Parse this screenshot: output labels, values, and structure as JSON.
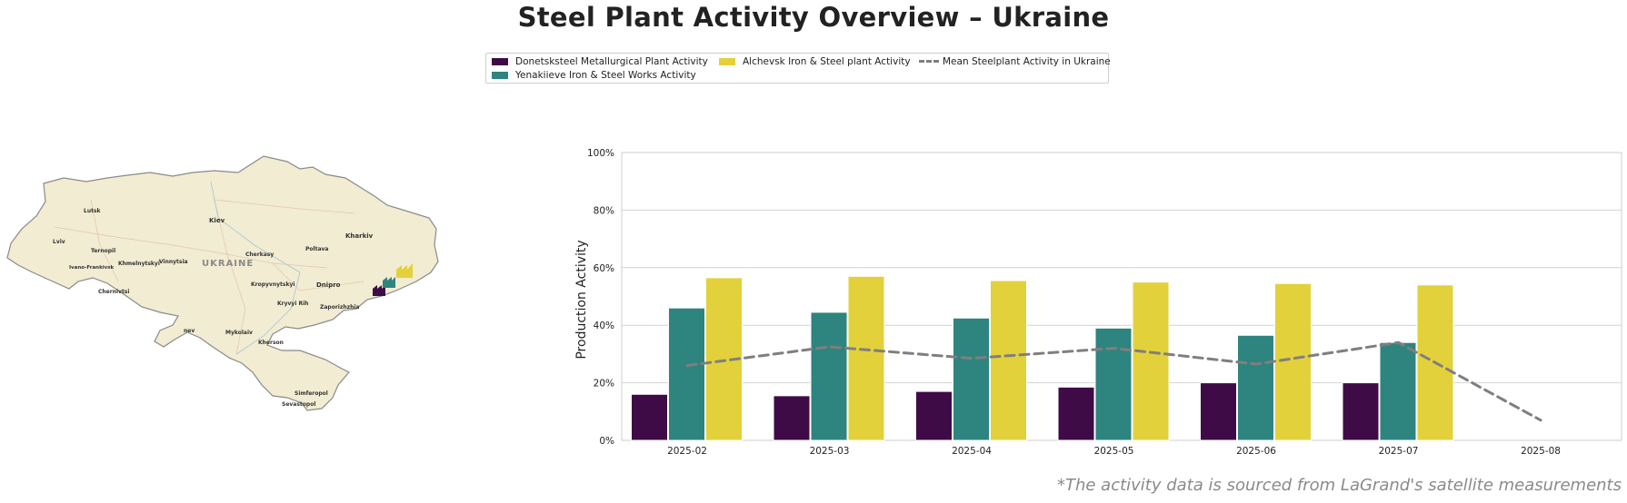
{
  "title": "Steel Plant Activity Overview – Ukraine",
  "footnote": "*The activity data is sourced from LaGrand's satellite measurements",
  "colors": {
    "donetsk": "#3f0b47",
    "yenakiieve": "#2e847f",
    "alchevsk": "#e2d13b",
    "mean": "#7f7f7f",
    "map_land": "#f1ecd2",
    "map_border": "#8a8a8a"
  },
  "legend": {
    "items": [
      {
        "label": "Donetsksteel Metallurgical Plant Activity",
        "color": "#3f0b47",
        "kind": "bar"
      },
      {
        "label": "Yenakiieve Iron & Steel Works Activity",
        "color": "#2e847f",
        "kind": "bar"
      },
      {
        "label": "Alchevsk Iron & Steel plant Activity",
        "color": "#e2d13b",
        "kind": "bar"
      },
      {
        "label": "Mean Steelplant Activity in Ukraine",
        "color": "#7f7f7f",
        "kind": "dashed-line"
      }
    ]
  },
  "map": {
    "country_label": "UKRAINE",
    "cities": [
      "Lutsk",
      "Kiev",
      "Kharkiv",
      "Lviv",
      "Ternopil",
      "Khmelnytskyi",
      "Vinnytsia",
      "Ivano-Frankivsk",
      "Cherkasy",
      "Poltava",
      "Chernivtsi",
      "Kropyvnytskyi",
      "Dnipro",
      "Kryvyi Rih",
      "Zaporizhzhia",
      "Mykolaiv",
      "Kherson",
      "Simferopol",
      "Sevastopol",
      "nev"
    ],
    "plant_icons": [
      "factory-icon-donetsk",
      "factory-icon-yenakiieve",
      "factory-icon-alchevsk"
    ]
  },
  "chart_data": {
    "type": "bar",
    "categories": [
      "2025-02",
      "2025-03",
      "2025-04",
      "2025-05",
      "2025-06",
      "2025-07",
      "2025-08"
    ],
    "series": [
      {
        "name": "Donetsksteel Metallurgical Plant Activity",
        "values": [
          16,
          15.5,
          17,
          18.5,
          20,
          20,
          null
        ]
      },
      {
        "name": "Yenakiieve Iron & Steel Works Activity",
        "values": [
          46,
          44.5,
          42.5,
          39,
          36.5,
          34,
          null
        ]
      },
      {
        "name": "Alchevsk Iron & Steel plant Activity",
        "values": [
          56.5,
          57,
          55.5,
          55,
          54.5,
          54,
          null
        ]
      }
    ],
    "line_series": {
      "name": "Mean Steelplant Activity in Ukraine",
      "values": [
        26,
        32.5,
        28.5,
        32,
        26.5,
        34,
        7
      ]
    },
    "ylabel": "Production Activity",
    "ylim": [
      0,
      100
    ],
    "yticks": [
      "0%",
      "20%",
      "40%",
      "60%",
      "80%",
      "100%"
    ],
    "ytick_values": [
      0,
      20,
      40,
      60,
      80,
      100
    ],
    "grid": true
  }
}
